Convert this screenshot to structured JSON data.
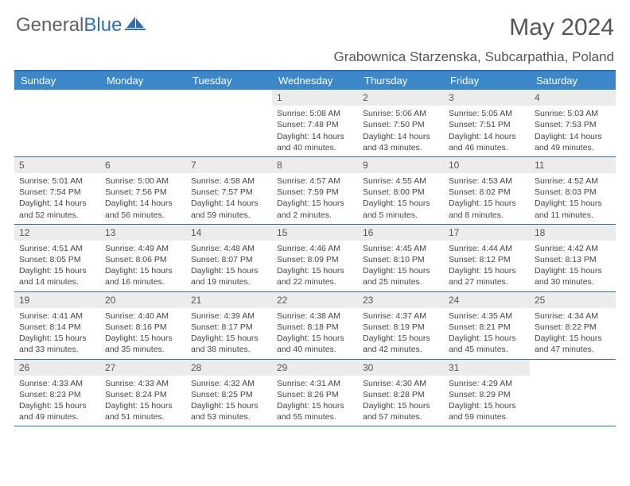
{
  "logo": {
    "text_gray": "General",
    "text_blue": "Blue"
  },
  "title": "May 2024",
  "location": "Grabownica Starzenska, Subcarpathia, Poland",
  "colors": {
    "header_bar": "#3b87c8",
    "accent_line": "#2f6fb0",
    "daynum_bg": "#ececec",
    "text": "#444444"
  },
  "day_names": [
    "Sunday",
    "Monday",
    "Tuesday",
    "Wednesday",
    "Thursday",
    "Friday",
    "Saturday"
  ],
  "weeks": [
    [
      {
        "n": "",
        "sr": "",
        "ss": "",
        "dl": ""
      },
      {
        "n": "",
        "sr": "",
        "ss": "",
        "dl": ""
      },
      {
        "n": "",
        "sr": "",
        "ss": "",
        "dl": ""
      },
      {
        "n": "1",
        "sr": "Sunrise: 5:08 AM",
        "ss": "Sunset: 7:48 PM",
        "dl": "Daylight: 14 hours and 40 minutes."
      },
      {
        "n": "2",
        "sr": "Sunrise: 5:06 AM",
        "ss": "Sunset: 7:50 PM",
        "dl": "Daylight: 14 hours and 43 minutes."
      },
      {
        "n": "3",
        "sr": "Sunrise: 5:05 AM",
        "ss": "Sunset: 7:51 PM",
        "dl": "Daylight: 14 hours and 46 minutes."
      },
      {
        "n": "4",
        "sr": "Sunrise: 5:03 AM",
        "ss": "Sunset: 7:53 PM",
        "dl": "Daylight: 14 hours and 49 minutes."
      }
    ],
    [
      {
        "n": "5",
        "sr": "Sunrise: 5:01 AM",
        "ss": "Sunset: 7:54 PM",
        "dl": "Daylight: 14 hours and 52 minutes."
      },
      {
        "n": "6",
        "sr": "Sunrise: 5:00 AM",
        "ss": "Sunset: 7:56 PM",
        "dl": "Daylight: 14 hours and 56 minutes."
      },
      {
        "n": "7",
        "sr": "Sunrise: 4:58 AM",
        "ss": "Sunset: 7:57 PM",
        "dl": "Daylight: 14 hours and 59 minutes."
      },
      {
        "n": "8",
        "sr": "Sunrise: 4:57 AM",
        "ss": "Sunset: 7:59 PM",
        "dl": "Daylight: 15 hours and 2 minutes."
      },
      {
        "n": "9",
        "sr": "Sunrise: 4:55 AM",
        "ss": "Sunset: 8:00 PM",
        "dl": "Daylight: 15 hours and 5 minutes."
      },
      {
        "n": "10",
        "sr": "Sunrise: 4:53 AM",
        "ss": "Sunset: 8:02 PM",
        "dl": "Daylight: 15 hours and 8 minutes."
      },
      {
        "n": "11",
        "sr": "Sunrise: 4:52 AM",
        "ss": "Sunset: 8:03 PM",
        "dl": "Daylight: 15 hours and 11 minutes."
      }
    ],
    [
      {
        "n": "12",
        "sr": "Sunrise: 4:51 AM",
        "ss": "Sunset: 8:05 PM",
        "dl": "Daylight: 15 hours and 14 minutes."
      },
      {
        "n": "13",
        "sr": "Sunrise: 4:49 AM",
        "ss": "Sunset: 8:06 PM",
        "dl": "Daylight: 15 hours and 16 minutes."
      },
      {
        "n": "14",
        "sr": "Sunrise: 4:48 AM",
        "ss": "Sunset: 8:07 PM",
        "dl": "Daylight: 15 hours and 19 minutes."
      },
      {
        "n": "15",
        "sr": "Sunrise: 4:46 AM",
        "ss": "Sunset: 8:09 PM",
        "dl": "Daylight: 15 hours and 22 minutes."
      },
      {
        "n": "16",
        "sr": "Sunrise: 4:45 AM",
        "ss": "Sunset: 8:10 PM",
        "dl": "Daylight: 15 hours and 25 minutes."
      },
      {
        "n": "17",
        "sr": "Sunrise: 4:44 AM",
        "ss": "Sunset: 8:12 PM",
        "dl": "Daylight: 15 hours and 27 minutes."
      },
      {
        "n": "18",
        "sr": "Sunrise: 4:42 AM",
        "ss": "Sunset: 8:13 PM",
        "dl": "Daylight: 15 hours and 30 minutes."
      }
    ],
    [
      {
        "n": "19",
        "sr": "Sunrise: 4:41 AM",
        "ss": "Sunset: 8:14 PM",
        "dl": "Daylight: 15 hours and 33 minutes."
      },
      {
        "n": "20",
        "sr": "Sunrise: 4:40 AM",
        "ss": "Sunset: 8:16 PM",
        "dl": "Daylight: 15 hours and 35 minutes."
      },
      {
        "n": "21",
        "sr": "Sunrise: 4:39 AM",
        "ss": "Sunset: 8:17 PM",
        "dl": "Daylight: 15 hours and 38 minutes."
      },
      {
        "n": "22",
        "sr": "Sunrise: 4:38 AM",
        "ss": "Sunset: 8:18 PM",
        "dl": "Daylight: 15 hours and 40 minutes."
      },
      {
        "n": "23",
        "sr": "Sunrise: 4:37 AM",
        "ss": "Sunset: 8:19 PM",
        "dl": "Daylight: 15 hours and 42 minutes."
      },
      {
        "n": "24",
        "sr": "Sunrise: 4:35 AM",
        "ss": "Sunset: 8:21 PM",
        "dl": "Daylight: 15 hours and 45 minutes."
      },
      {
        "n": "25",
        "sr": "Sunrise: 4:34 AM",
        "ss": "Sunset: 8:22 PM",
        "dl": "Daylight: 15 hours and 47 minutes."
      }
    ],
    [
      {
        "n": "26",
        "sr": "Sunrise: 4:33 AM",
        "ss": "Sunset: 8:23 PM",
        "dl": "Daylight: 15 hours and 49 minutes."
      },
      {
        "n": "27",
        "sr": "Sunrise: 4:33 AM",
        "ss": "Sunset: 8:24 PM",
        "dl": "Daylight: 15 hours and 51 minutes."
      },
      {
        "n": "28",
        "sr": "Sunrise: 4:32 AM",
        "ss": "Sunset: 8:25 PM",
        "dl": "Daylight: 15 hours and 53 minutes."
      },
      {
        "n": "29",
        "sr": "Sunrise: 4:31 AM",
        "ss": "Sunset: 8:26 PM",
        "dl": "Daylight: 15 hours and 55 minutes."
      },
      {
        "n": "30",
        "sr": "Sunrise: 4:30 AM",
        "ss": "Sunset: 8:28 PM",
        "dl": "Daylight: 15 hours and 57 minutes."
      },
      {
        "n": "31",
        "sr": "Sunrise: 4:29 AM",
        "ss": "Sunset: 8:29 PM",
        "dl": "Daylight: 15 hours and 59 minutes."
      },
      {
        "n": "",
        "sr": "",
        "ss": "",
        "dl": ""
      }
    ]
  ]
}
